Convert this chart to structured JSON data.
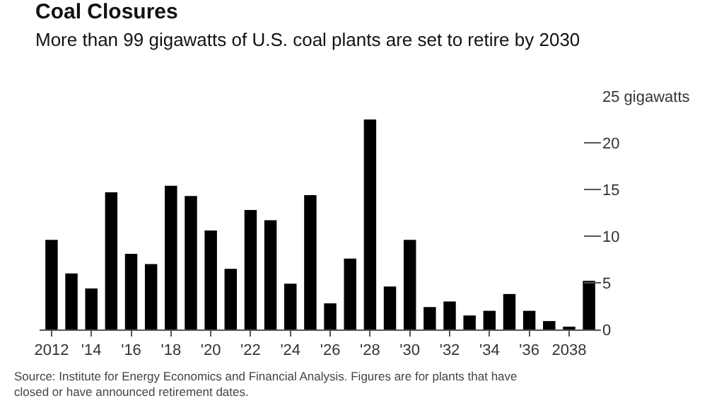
{
  "chart_data": {
    "type": "bar",
    "title": "Coal Closures",
    "subtitle": "More than 99 gigawatts of U.S. coal plants are set to retire by 2030",
    "categories": [
      "2012",
      null,
      "'14",
      null,
      "'16",
      null,
      "'18",
      null,
      "'20",
      null,
      "'22",
      null,
      "'24",
      null,
      "'26",
      null,
      "'28",
      null,
      "'30",
      null,
      "'32",
      null,
      "'34",
      null,
      "'36",
      null,
      "2038",
      null
    ],
    "values": [
      9.6,
      6.0,
      4.4,
      14.7,
      8.1,
      7.0,
      15.4,
      14.3,
      10.6,
      6.5,
      12.8,
      11.7,
      4.9,
      14.4,
      2.8,
      7.6,
      22.5,
      4.6,
      9.6,
      2.4,
      3.0,
      1.5,
      2.0,
      3.8,
      2.0,
      0.9,
      0.3,
      5.2
    ],
    "color": "#000000",
    "ylim": [
      0,
      25
    ],
    "yticks": [
      0,
      5,
      10,
      15,
      20,
      {
        "value": 25,
        "label": "25 gigawatts"
      }
    ],
    "legend": false,
    "annotations": [
      "Source: Institute for Energy Economics and Financial Analysis. Figures are for plants that have closed or have announced retirement dates."
    ]
  }
}
